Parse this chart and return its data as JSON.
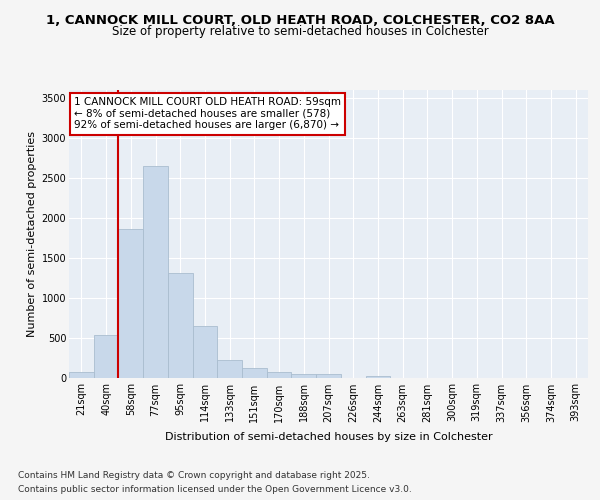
{
  "title_line1": "1, CANNOCK MILL COURT, OLD HEATH ROAD, COLCHESTER, CO2 8AA",
  "title_line2": "Size of property relative to semi-detached houses in Colchester",
  "xlabel": "Distribution of semi-detached houses by size in Colchester",
  "ylabel": "Number of semi-detached properties",
  "footnote1": "Contains HM Land Registry data © Crown copyright and database right 2025.",
  "footnote2": "Contains public sector information licensed under the Open Government Licence v3.0.",
  "annotation_line1": "1 CANNOCK MILL COURT OLD HEATH ROAD: 59sqm",
  "annotation_line2": "← 8% of semi-detached houses are smaller (578)",
  "annotation_line3": "92% of semi-detached houses are larger (6,870) →",
  "bar_color": "#c8d8ea",
  "bar_edge_color": "#aabdcf",
  "ref_line_color": "#cc0000",
  "annotation_box_color": "#cc0000",
  "plot_bg_color": "#e8eef5",
  "fig_bg_color": "#f5f5f5",
  "grid_color": "#ffffff",
  "categories": [
    "21sqm",
    "40sqm",
    "58sqm",
    "77sqm",
    "95sqm",
    "114sqm",
    "133sqm",
    "151sqm",
    "170sqm",
    "188sqm",
    "207sqm",
    "226sqm",
    "244sqm",
    "263sqm",
    "281sqm",
    "300sqm",
    "319sqm",
    "337sqm",
    "356sqm",
    "374sqm",
    "393sqm"
  ],
  "values": [
    75,
    530,
    1860,
    2650,
    1310,
    640,
    215,
    115,
    75,
    50,
    40,
    0,
    25,
    0,
    0,
    0,
    0,
    0,
    0,
    0,
    0
  ],
  "ylim": [
    0,
    3600
  ],
  "yticks": [
    0,
    500,
    1000,
    1500,
    2000,
    2500,
    3000,
    3500
  ],
  "title1_fontsize": 9.5,
  "title2_fontsize": 8.5,
  "ylabel_fontsize": 8,
  "xlabel_fontsize": 8,
  "tick_fontsize": 7,
  "footnote_fontsize": 6.5,
  "annot_fontsize": 7.5
}
